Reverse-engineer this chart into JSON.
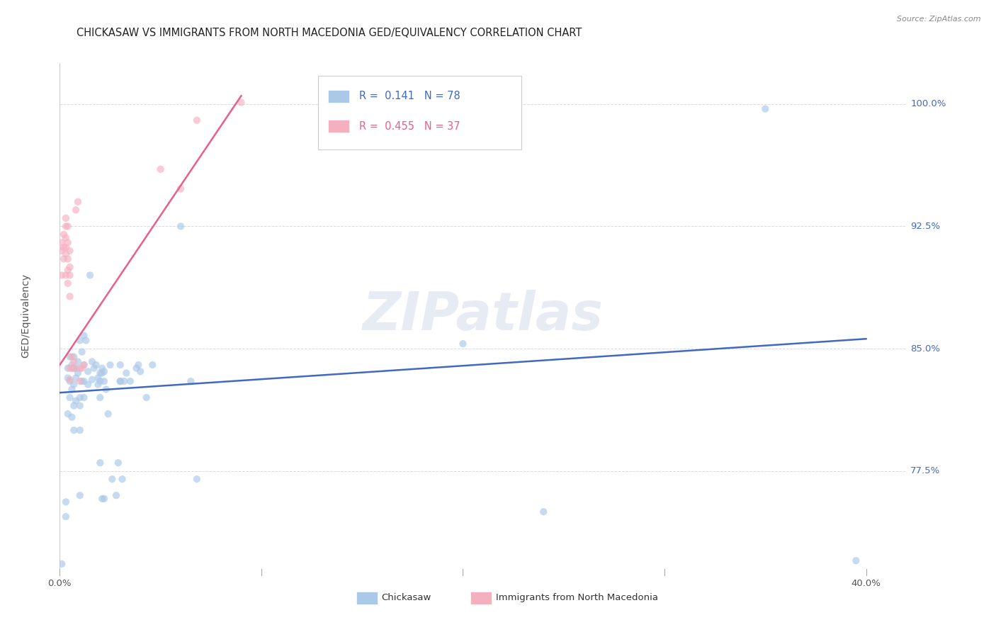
{
  "title": "CHICKASAW VS IMMIGRANTS FROM NORTH MACEDONIA GED/EQUIVALENCY CORRELATION CHART",
  "source": "Source: ZipAtlas.com",
  "ylabel": "GED/Equivalency",
  "xlim": [
    0.0,
    0.42
  ],
  "ylim": [
    0.715,
    1.025
  ],
  "watermark": "ZIPatlas",
  "blue_line_x": [
    0.0,
    0.4
  ],
  "blue_line_y": [
    0.823,
    0.856
  ],
  "pink_line_x": [
    0.0,
    0.09
  ],
  "pink_line_y": [
    0.84,
    1.005
  ],
  "chickasaw_points": [
    [
      0.001,
      0.718
    ],
    [
      0.003,
      0.747
    ],
    [
      0.003,
      0.756
    ],
    [
      0.004,
      0.81
    ],
    [
      0.004,
      0.832
    ],
    [
      0.004,
      0.838
    ],
    [
      0.005,
      0.82
    ],
    [
      0.005,
      0.845
    ],
    [
      0.005,
      0.83
    ],
    [
      0.006,
      0.808
    ],
    [
      0.006,
      0.825
    ],
    [
      0.006,
      0.84
    ],
    [
      0.007,
      0.828
    ],
    [
      0.007,
      0.838
    ],
    [
      0.007,
      0.845
    ],
    [
      0.007,
      0.815
    ],
    [
      0.007,
      0.8
    ],
    [
      0.008,
      0.832
    ],
    [
      0.008,
      0.838
    ],
    [
      0.008,
      0.818
    ],
    [
      0.009,
      0.842
    ],
    [
      0.009,
      0.835
    ],
    [
      0.01,
      0.855
    ],
    [
      0.01,
      0.8
    ],
    [
      0.01,
      0.82
    ],
    [
      0.01,
      0.815
    ],
    [
      0.01,
      0.76
    ],
    [
      0.011,
      0.848
    ],
    [
      0.011,
      0.83
    ],
    [
      0.012,
      0.858
    ],
    [
      0.012,
      0.84
    ],
    [
      0.012,
      0.83
    ],
    [
      0.012,
      0.82
    ],
    [
      0.013,
      0.855
    ],
    [
      0.014,
      0.836
    ],
    [
      0.014,
      0.828
    ],
    [
      0.015,
      0.895
    ],
    [
      0.016,
      0.842
    ],
    [
      0.016,
      0.831
    ],
    [
      0.017,
      0.838
    ],
    [
      0.018,
      0.84
    ],
    [
      0.019,
      0.832
    ],
    [
      0.019,
      0.828
    ],
    [
      0.02,
      0.835
    ],
    [
      0.02,
      0.83
    ],
    [
      0.02,
      0.82
    ],
    [
      0.02,
      0.78
    ],
    [
      0.021,
      0.838
    ],
    [
      0.021,
      0.835
    ],
    [
      0.021,
      0.758
    ],
    [
      0.022,
      0.836
    ],
    [
      0.022,
      0.83
    ],
    [
      0.022,
      0.758
    ],
    [
      0.023,
      0.825
    ],
    [
      0.024,
      0.81
    ],
    [
      0.025,
      0.84
    ],
    [
      0.026,
      0.77
    ],
    [
      0.028,
      0.76
    ],
    [
      0.029,
      0.78
    ],
    [
      0.03,
      0.84
    ],
    [
      0.03,
      0.83
    ],
    [
      0.03,
      0.83
    ],
    [
      0.031,
      0.77
    ],
    [
      0.032,
      0.83
    ],
    [
      0.033,
      0.835
    ],
    [
      0.035,
      0.83
    ],
    [
      0.038,
      0.838
    ],
    [
      0.039,
      0.84
    ],
    [
      0.04,
      0.836
    ],
    [
      0.043,
      0.82
    ],
    [
      0.046,
      0.84
    ],
    [
      0.06,
      0.925
    ],
    [
      0.065,
      0.83
    ],
    [
      0.068,
      0.77
    ],
    [
      0.2,
      0.853
    ],
    [
      0.24,
      0.75
    ],
    [
      0.35,
      0.997
    ],
    [
      0.395,
      0.72
    ]
  ],
  "macedonia_points": [
    [
      0.001,
      0.895
    ],
    [
      0.001,
      0.91
    ],
    [
      0.001,
      0.915
    ],
    [
      0.002,
      0.905
    ],
    [
      0.002,
      0.912
    ],
    [
      0.002,
      0.92
    ],
    [
      0.003,
      0.895
    ],
    [
      0.003,
      0.908
    ],
    [
      0.003,
      0.912
    ],
    [
      0.003,
      0.918
    ],
    [
      0.003,
      0.925
    ],
    [
      0.003,
      0.93
    ],
    [
      0.004,
      0.89
    ],
    [
      0.004,
      0.898
    ],
    [
      0.004,
      0.905
    ],
    [
      0.004,
      0.915
    ],
    [
      0.004,
      0.925
    ],
    [
      0.005,
      0.882
    ],
    [
      0.005,
      0.895
    ],
    [
      0.005,
      0.9
    ],
    [
      0.005,
      0.91
    ],
    [
      0.005,
      0.838
    ],
    [
      0.005,
      0.831
    ],
    [
      0.006,
      0.845
    ],
    [
      0.006,
      0.838
    ],
    [
      0.007,
      0.838
    ],
    [
      0.007,
      0.842
    ],
    [
      0.008,
      0.935
    ],
    [
      0.009,
      0.94
    ],
    [
      0.01,
      0.838
    ],
    [
      0.01,
      0.83
    ],
    [
      0.011,
      0.838
    ],
    [
      0.012,
      0.84
    ],
    [
      0.05,
      0.96
    ],
    [
      0.06,
      0.948
    ],
    [
      0.068,
      0.99
    ],
    [
      0.09,
      1.001
    ]
  ],
  "blue_scatter_color": "#aac8e8",
  "pink_scatter_color": "#f5b0c0",
  "blue_line_color": "#4169c0",
  "pink_line_color": "#e8608a",
  "grid_color": "#d8d8e8",
  "background_color": "#ffffff",
  "title_fontsize": 10.5,
  "scatter_size": 55,
  "scatter_alpha": 0.65,
  "right_tick_color": "#4169c0",
  "grid_yticks": [
    0.775,
    0.85,
    0.925,
    1.0
  ],
  "right_tick_labels": {
    "0.775": "77.5%",
    "0.85": "85.0%",
    "0.925": "92.5%",
    "1.0": "100.0%"
  },
  "legend_R1": "0.141",
  "legend_N1": "78",
  "legend_R2": "0.455",
  "legend_N2": "37"
}
